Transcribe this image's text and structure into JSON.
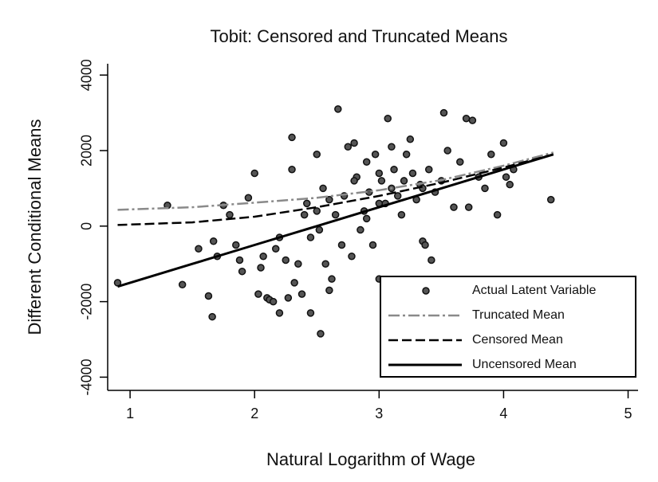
{
  "chart_data": {
    "type": "scatter",
    "title": "Tobit: Censored and Truncated Means",
    "x_label": "Natural Logarithm of Wage",
    "y_label": "Different Conditional Means",
    "xlim": [
      0.82,
      5.08
    ],
    "ylim": [
      -4350,
      4300
    ],
    "xticks": [
      1,
      2,
      3,
      4,
      5
    ],
    "yticks": [
      -4000,
      -2000,
      0,
      2000,
      4000
    ],
    "legend": "lower right",
    "series": [
      {
        "name": "Actual Latent Variable",
        "kind": "scatter",
        "color": "#555555",
        "x": [
          0.9,
          1.3,
          1.42,
          1.55,
          1.63,
          1.66,
          1.67,
          1.7,
          1.75,
          1.8,
          1.85,
          1.88,
          1.9,
          1.95,
          2.0,
          2.03,
          2.05,
          2.07,
          2.1,
          2.12,
          2.15,
          2.17,
          2.2,
          2.2,
          2.25,
          2.27,
          2.3,
          2.3,
          2.32,
          2.35,
          2.38,
          2.4,
          2.42,
          2.45,
          2.45,
          2.5,
          2.52,
          2.53,
          2.55,
          2.57,
          2.6,
          2.62,
          2.65,
          2.67,
          2.7,
          2.72,
          2.75,
          2.78,
          2.8,
          2.82,
          2.85,
          2.88,
          2.9,
          2.92,
          2.95,
          2.97,
          3.0,
          3.0,
          3.02,
          3.05,
          3.07,
          3.1,
          3.12,
          3.15,
          3.18,
          3.2,
          3.22,
          3.25,
          3.27,
          3.3,
          3.33,
          3.35,
          3.37,
          3.4,
          3.42,
          3.45,
          3.5,
          3.52,
          3.55,
          3.6,
          3.65,
          3.7,
          3.72,
          3.75,
          3.8,
          3.85,
          3.9,
          3.95,
          4.0,
          4.02,
          4.05,
          4.08,
          4.38,
          3.0,
          2.9,
          2.6,
          2.5,
          3.35,
          3.1,
          2.8
        ],
        "values": [
          -1500,
          550,
          -1550,
          -600,
          -1850,
          -2400,
          -400,
          -800,
          550,
          300,
          -500,
          -900,
          -1200,
          750,
          1400,
          -1800,
          -1100,
          -800,
          -1900,
          -1950,
          -2000,
          -600,
          -300,
          -2300,
          -900,
          -1900,
          1500,
          2350,
          -1500,
          -1000,
          -1800,
          300,
          600,
          -300,
          -2300,
          1900,
          -100,
          -2850,
          1000,
          -1000,
          -1700,
          -1400,
          300,
          3100,
          -500,
          800,
          2100,
          -800,
          2200,
          1300,
          -100,
          400,
          1700,
          900,
          -500,
          1900,
          -1400,
          1400,
          1200,
          600,
          2850,
          2100,
          1500,
          800,
          300,
          1200,
          1900,
          2300,
          1400,
          700,
          1100,
          -400,
          -500,
          1500,
          -900,
          900,
          1200,
          3000,
          2000,
          500,
          1700,
          2850,
          500,
          2800,
          1300,
          1000,
          1900,
          300,
          2200,
          1300,
          1100,
          1500,
          700,
          600,
          200,
          700,
          400,
          1000,
          1000,
          1200
        ]
      },
      {
        "name": "Truncated Mean",
        "kind": "line",
        "style": "dashdot",
        "color": "#8a8a8a",
        "x": [
          0.9,
          1.5,
          2,
          2.5,
          3,
          3.5,
          4,
          4.4
        ],
        "values": [
          430,
          500,
          620,
          750,
          950,
          1220,
          1600,
          1950
        ]
      },
      {
        "name": "Censored Mean",
        "kind": "line",
        "style": "dashed",
        "color": "#000000",
        "x": [
          0.9,
          1.5,
          2,
          2.5,
          3,
          3.5,
          4,
          4.4
        ],
        "values": [
          30,
          100,
          250,
          500,
          800,
          1150,
          1550,
          1900
        ]
      },
      {
        "name": "Uncensored Mean",
        "kind": "line",
        "style": "solid",
        "color": "#000000",
        "x": [
          0.9,
          1.5,
          2,
          2.5,
          3,
          3.5,
          4,
          4.4
        ],
        "values": [
          -1600,
          -1000,
          -500,
          0,
          500,
          1000,
          1500,
          1900
        ]
      }
    ]
  }
}
